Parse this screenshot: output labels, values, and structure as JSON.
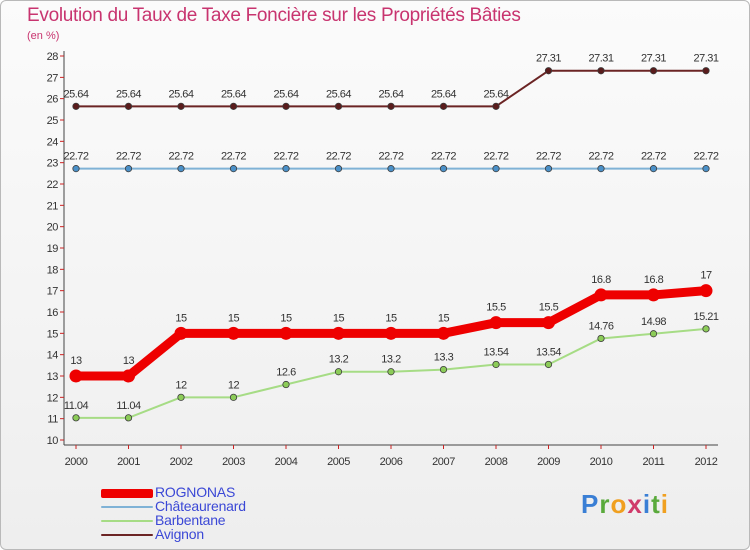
{
  "header": {
    "title": "Evolution du Taux de Taxe Foncière sur les Propriétés Bâties",
    "subtitle": "(en %)"
  },
  "logo": {
    "letters": [
      "P",
      "r",
      "o",
      "x",
      "i",
      "t",
      "i"
    ],
    "colors": [
      "#3a7fd5",
      "#5aaa3c",
      "#f0a020",
      "#d03a6a",
      "#3a7fd5",
      "#5aaa3c",
      "#f0a020"
    ]
  },
  "chart_data": {
    "type": "line",
    "x": [
      "2000",
      "2001",
      "2002",
      "2003",
      "2004",
      "2005",
      "2006",
      "2007",
      "2008",
      "2009",
      "2010",
      "2011",
      "2012"
    ],
    "ylim": [
      10,
      28
    ],
    "yticks": [
      10,
      11,
      12,
      13,
      14,
      15,
      16,
      17,
      18,
      19,
      20,
      21,
      22,
      23,
      24,
      25,
      26,
      27,
      28
    ],
    "grid": false,
    "legend_position": "bottom-left",
    "series": [
      {
        "name": "Avignon",
        "color": "#6b2424",
        "marker": "#5a1c1c",
        "values": [
          25.64,
          25.64,
          25.64,
          25.64,
          25.64,
          25.64,
          25.64,
          25.64,
          25.64,
          27.31,
          27.31,
          27.31,
          27.31
        ],
        "labels": [
          "25.64",
          "25.64",
          "25.64",
          "25.64",
          "25.64",
          "25.64",
          "25.64",
          "25.64",
          "25.64",
          "27.31",
          "27.31",
          "27.31",
          "27.31"
        ]
      },
      {
        "name": "Châteaurenard",
        "color": "#7fb2d6",
        "marker": "#4a90c8",
        "values": [
          22.72,
          22.72,
          22.72,
          22.72,
          22.72,
          22.72,
          22.72,
          22.72,
          22.72,
          22.72,
          22.72,
          22.72,
          22.72
        ],
        "labels": [
          "22.72",
          "22.72",
          "22.72",
          "22.72",
          "22.72",
          "22.72",
          "22.72",
          "22.72",
          "22.72",
          "22.72",
          "22.72",
          "22.72",
          "22.72"
        ]
      },
      {
        "name": "Barbentane",
        "color": "#a6dc85",
        "marker": "#8ccc58",
        "values": [
          11.04,
          11.04,
          12,
          12,
          12.6,
          13.2,
          13.2,
          13.3,
          13.54,
          13.54,
          14.76,
          14.98,
          15.21
        ],
        "labels": [
          "11.04",
          "11.04",
          "12",
          "12",
          "12.6",
          "13.2",
          "13.2",
          "13.3",
          "13.54",
          "13.54",
          "14.76",
          "14.98",
          "15.21"
        ]
      },
      {
        "name": "ROGNONAS",
        "color": "#ee0000",
        "marker": "#ee0000",
        "values": [
          13,
          13,
          15,
          15,
          15,
          15,
          15,
          15,
          15.5,
          15.5,
          16.8,
          16.8,
          17
        ],
        "labels": [
          "13",
          "13",
          "15",
          "15",
          "15",
          "15",
          "15",
          "15",
          "15.5",
          "15.5",
          "16.8",
          "16.8",
          "17"
        ]
      }
    ],
    "legend": [
      {
        "name": "ROGNONAS",
        "color": "#ee0000",
        "width": 9
      },
      {
        "name": "Châteaurenard",
        "color": "#7fb2d6",
        "width": 2
      },
      {
        "name": "Barbentane",
        "color": "#a6dc85",
        "width": 2
      },
      {
        "name": "Avignon",
        "color": "#6b2424",
        "width": 2
      }
    ]
  }
}
